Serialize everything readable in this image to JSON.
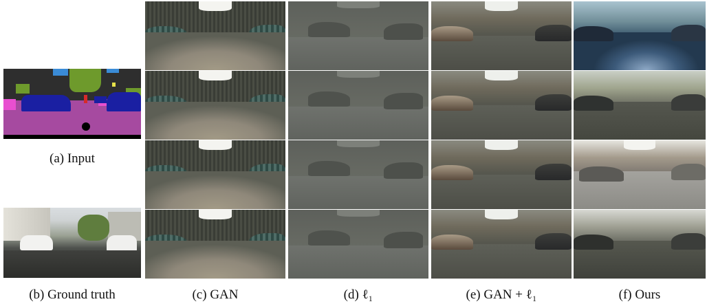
{
  "captions": {
    "a": "(a) Input",
    "b": "(b) Ground truth",
    "c": "(c) GAN",
    "d": "(d) ℓ₁",
    "e": "(e) GAN + ℓ₁",
    "f": "(f) Ours"
  },
  "colors": {
    "road": "#a64aa0",
    "car": "#1a1fa2",
    "vegetation": "#6e9a2c",
    "sky": "#3a8bd6",
    "sidewalk": "#e84fd0",
    "building": "#4b4b4b",
    "person": "#d62a2a",
    "sign": "#e7e24a",
    "ego": "#000000"
  },
  "columns": [
    "gan",
    "l1",
    "ganl1",
    "ours"
  ]
}
